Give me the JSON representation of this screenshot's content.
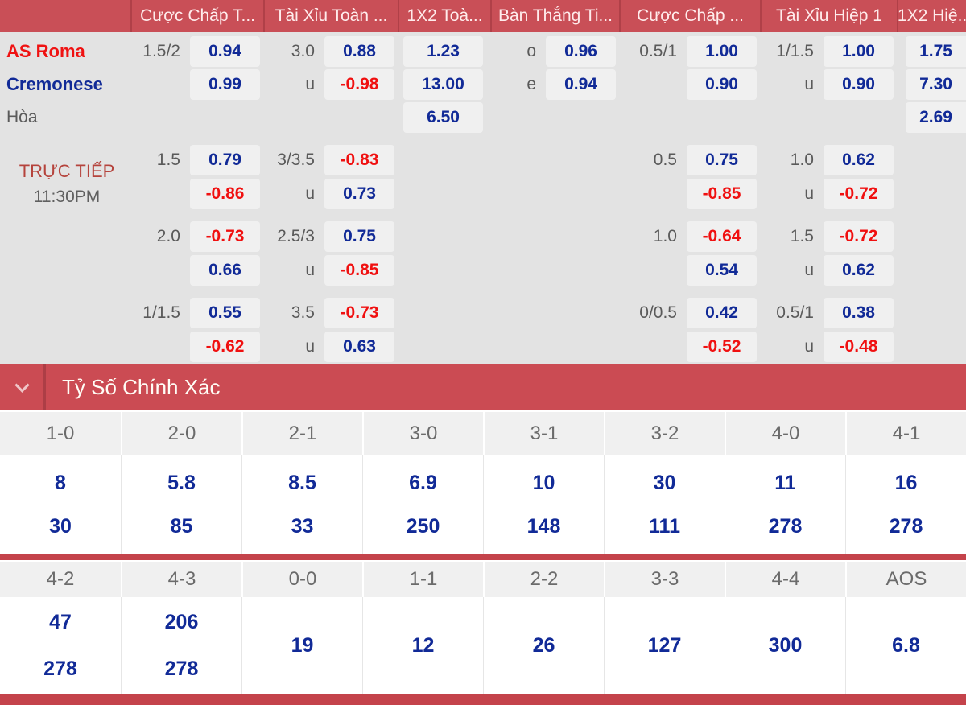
{
  "colors": {
    "accent_red": "#c94f57",
    "divider_red": "#b04048",
    "section_bar_red": "#c4434b",
    "odds_blue": "#112a97",
    "odds_negative_red": "#f01010",
    "home_team_red": "#ef1212",
    "away_team_blue": "#112a97",
    "live_label_red": "#b5433c",
    "page_gray": "#e3e3e3",
    "cell_gray": "#f0f0f0"
  },
  "odds_table": {
    "columns": [
      "Cược Chấp T...",
      "Tài Xỉu Toàn ...",
      "1X2 Toà...",
      "Bàn Thắng Ti...",
      "Cược Chấp ...",
      "Tài Xỉu Hiệp 1",
      "1X2 Hiệ..."
    ],
    "teams": {
      "home": "AS Roma",
      "away": "Cremonese",
      "draw": "Hòa"
    },
    "live": {
      "label": "TRỰC TIẾP",
      "time": "11:30PM"
    },
    "u_label": "u",
    "rows": {
      "home": {
        "ah_line": "1.5/2",
        "ah": "0.94",
        "ou_line": "3.0",
        "ou": "0.88",
        "x12": "1.23",
        "oe_side": "o",
        "oe": "0.96",
        "ah1_line": "0.5/1",
        "ah1": "1.00",
        "ou1_line": "1/1.5",
        "ou1": "1.00",
        "x12h": "1.75"
      },
      "away": {
        "ah": "0.99",
        "ou": "-0.98",
        "x12": "13.00",
        "oe_side": "e",
        "oe": "0.94",
        "ah1": "0.90",
        "ou1": "0.90",
        "x12h": "7.30"
      },
      "draw": {
        "x12": "6.50",
        "x12h": "2.69"
      }
    },
    "groups": [
      {
        "ft_ah_line": "1.5",
        "ft_ah_a": "0.79",
        "ft_ah_b": "-0.86",
        "ft_ou_line": "3/3.5",
        "ft_ou_a": "-0.83",
        "ft_ou_b": "0.73",
        "h1_ah_line": "0.5",
        "h1_ah_a": "0.75",
        "h1_ah_b": "-0.85",
        "h1_ou_line": "1.0",
        "h1_ou_a": "0.62",
        "h1_ou_b": "-0.72"
      },
      {
        "ft_ah_line": "2.0",
        "ft_ah_a": "-0.73",
        "ft_ah_b": "0.66",
        "ft_ou_line": "2.5/3",
        "ft_ou_a": "0.75",
        "ft_ou_b": "-0.85",
        "h1_ah_line": "1.0",
        "h1_ah_a": "-0.64",
        "h1_ah_b": "0.54",
        "h1_ou_line": "1.5",
        "h1_ou_a": "-0.72",
        "h1_ou_b": "0.62"
      },
      {
        "ft_ah_line": "1/1.5",
        "ft_ah_a": "0.55",
        "ft_ah_b": "-0.62",
        "ft_ou_line": "3.5",
        "ft_ou_a": "-0.73",
        "ft_ou_b": "0.63",
        "h1_ah_line": "0/0.5",
        "h1_ah_a": "0.42",
        "h1_ah_b": "-0.52",
        "h1_ou_line": "0.5/1",
        "h1_ou_a": "0.38",
        "h1_ou_b": "-0.48"
      }
    ]
  },
  "correct_score": {
    "title": "Tỷ Số Chính Xác",
    "row1": [
      {
        "label": "1-0",
        "v1": "8",
        "v2": "30"
      },
      {
        "label": "2-0",
        "v1": "5.8",
        "v2": "85"
      },
      {
        "label": "2-1",
        "v1": "8.5",
        "v2": "33"
      },
      {
        "label": "3-0",
        "v1": "6.9",
        "v2": "250"
      },
      {
        "label": "3-1",
        "v1": "10",
        "v2": "148"
      },
      {
        "label": "3-2",
        "v1": "30",
        "v2": "111"
      },
      {
        "label": "4-0",
        "v1": "11",
        "v2": "278"
      },
      {
        "label": "4-1",
        "v1": "16",
        "v2": "278"
      }
    ],
    "row2": [
      {
        "label": "4-2",
        "v1": "47",
        "v2": "278"
      },
      {
        "label": "4-3",
        "v1": "206",
        "v2": "278"
      },
      {
        "label": "0-0",
        "v": "19"
      },
      {
        "label": "1-1",
        "v": "12"
      },
      {
        "label": "2-2",
        "v": "26"
      },
      {
        "label": "3-3",
        "v": "127"
      },
      {
        "label": "4-4",
        "v": "300"
      },
      {
        "label": "AOS",
        "v": "6.8"
      }
    ]
  }
}
